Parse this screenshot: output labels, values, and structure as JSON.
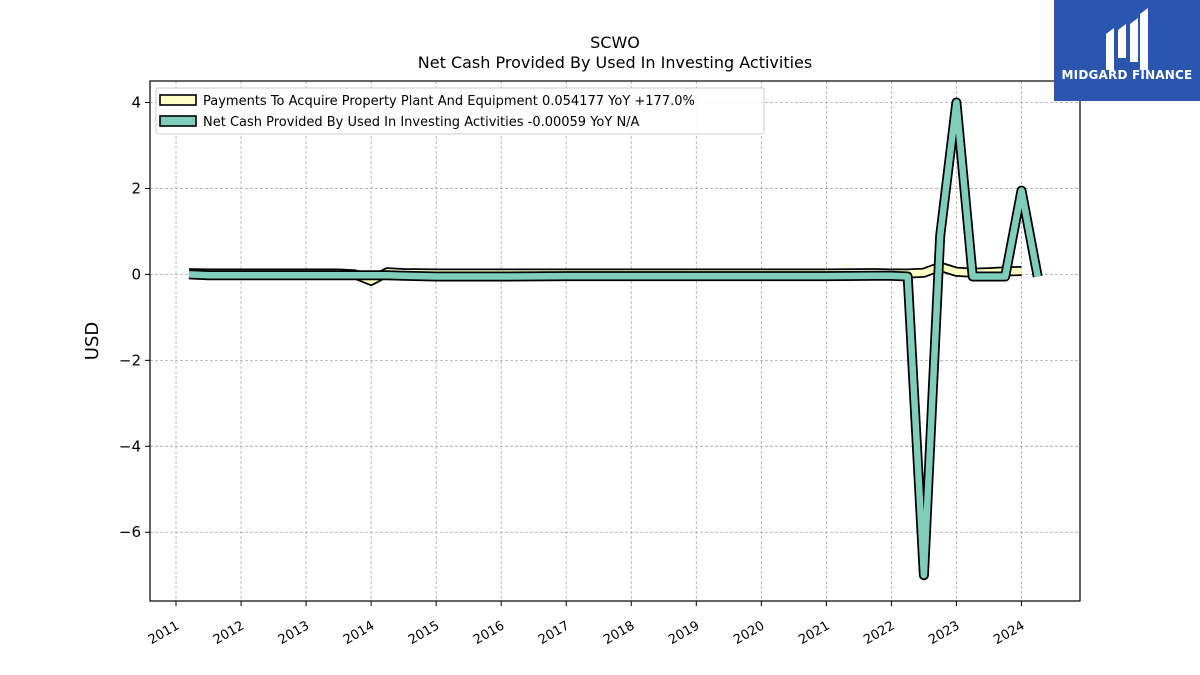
{
  "brand": {
    "name": "MIDGARD FINANCE",
    "logo_icon": "midgard-m-logo-icon",
    "color": "#2a56b0"
  },
  "chart_data": {
    "type": "line",
    "title": "SCWO",
    "subtitle": "Net Cash Provided By Used In Investing Activities",
    "xlabel": "",
    "ylabel": "USD",
    "xlim": [
      2010.6,
      2024.9
    ],
    "ylim": [
      -7.6,
      4.5
    ],
    "x_ticks": [
      2011,
      2012,
      2013,
      2014,
      2015,
      2016,
      2017,
      2018,
      2019,
      2020,
      2021,
      2022,
      2023,
      2024
    ],
    "y_ticks": [
      4,
      2,
      0,
      -2,
      -4,
      -6
    ],
    "y_tick_labels": [
      "4",
      "2",
      "0",
      "−2",
      "−4",
      "−6"
    ],
    "grid": true,
    "legend_position": "top-left",
    "series": [
      {
        "name": "Payments To Acquire Property Plant And Equipment  0.054177 YoY +177.0%",
        "color": "#ffffc4",
        "x": [
          2011.2,
          2011.5,
          2012.0,
          2012.5,
          2013.0,
          2013.5,
          2013.75,
          2014.0,
          2014.25,
          2014.5,
          2015.0,
          2016.0,
          2017.0,
          2018.0,
          2019.0,
          2020.0,
          2021.0,
          2021.75,
          2022.0,
          2022.25,
          2022.5,
          2022.75,
          2023.0,
          2023.25,
          2023.5,
          2023.75,
          2024.0
        ],
        "values": [
          0.03,
          0.02,
          0.02,
          0.02,
          0.02,
          0.02,
          0.0,
          -0.15,
          0.05,
          0.03,
          0.02,
          0.02,
          0.02,
          0.02,
          0.02,
          0.02,
          0.02,
          0.03,
          0.02,
          0.02,
          0.04,
          0.18,
          0.06,
          0.04,
          0.05,
          0.07,
          0.08
        ]
      },
      {
        "name": "Net Cash Provided By Used In Investing Activities  -0.00059 YoY N/A",
        "color": "#7fcdbb",
        "x": [
          2011.2,
          2011.5,
          2012.0,
          2012.5,
          2013.0,
          2013.5,
          2014.0,
          2014.25,
          2014.5,
          2015.0,
          2016.0,
          2017.0,
          2018.0,
          2019.0,
          2020.0,
          2021.0,
          2021.75,
          2022.0,
          2022.25,
          2022.5,
          2022.75,
          2023.0,
          2023.25,
          2023.5,
          2023.75,
          2024.0,
          2024.25
        ],
        "values": [
          0.0,
          -0.02,
          -0.02,
          -0.02,
          -0.02,
          -0.02,
          -0.02,
          -0.02,
          -0.03,
          -0.05,
          -0.05,
          -0.04,
          -0.04,
          -0.04,
          -0.04,
          -0.04,
          -0.03,
          -0.03,
          -0.05,
          -7.0,
          0.9,
          4.0,
          -0.05,
          -0.05,
          -0.05,
          1.95,
          -0.05
        ]
      }
    ]
  }
}
